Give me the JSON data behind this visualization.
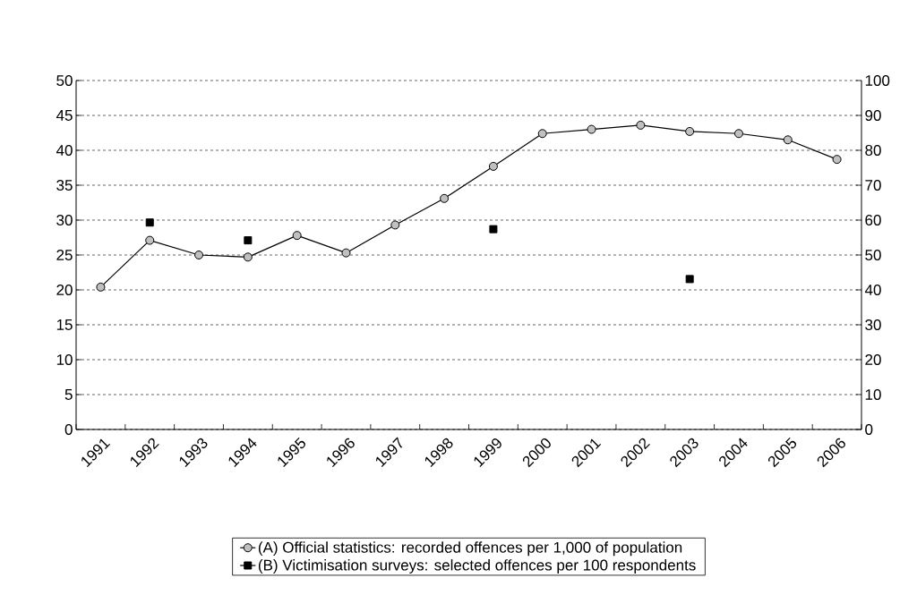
{
  "chart_data": {
    "type": "line",
    "categories": [
      "1991",
      "1992",
      "1993",
      "1994",
      "1995",
      "1996",
      "1997",
      "1998",
      "1999",
      "2000",
      "2001",
      "2002",
      "2003",
      "2004",
      "2005",
      "2006"
    ],
    "series": [
      {
        "name": "(A) Official statistics: recorded offences per 1,000 of population",
        "color": "#c0c0c0",
        "marker": "circle",
        "values": [
          20.4,
          27.1,
          25.0,
          24.7,
          27.8,
          25.3,
          29.3,
          33.1,
          37.7,
          42.4,
          43.0,
          43.6,
          42.7,
          42.4,
          41.5,
          38.7
        ]
      },
      {
        "name": "(B) Victimisation surveys: selected offences per 100 respondents",
        "type": "scatter",
        "axis": "y2",
        "color": "#000000",
        "marker": "square",
        "values": [
          null,
          59.3,
          null,
          54.2,
          null,
          null,
          null,
          null,
          57.4,
          null,
          null,
          null,
          43.1,
          null,
          null,
          null
        ]
      }
    ],
    "ylim": [
      0,
      50
    ],
    "yticks": [
      0,
      5,
      10,
      15,
      20,
      25,
      30,
      35,
      40,
      45,
      50
    ],
    "y2lim": [
      0,
      100
    ],
    "y2ticks": [
      0,
      10,
      20,
      30,
      40,
      50,
      60,
      70,
      80,
      90,
      100
    ],
    "grid": "y",
    "legend": "bottom"
  }
}
